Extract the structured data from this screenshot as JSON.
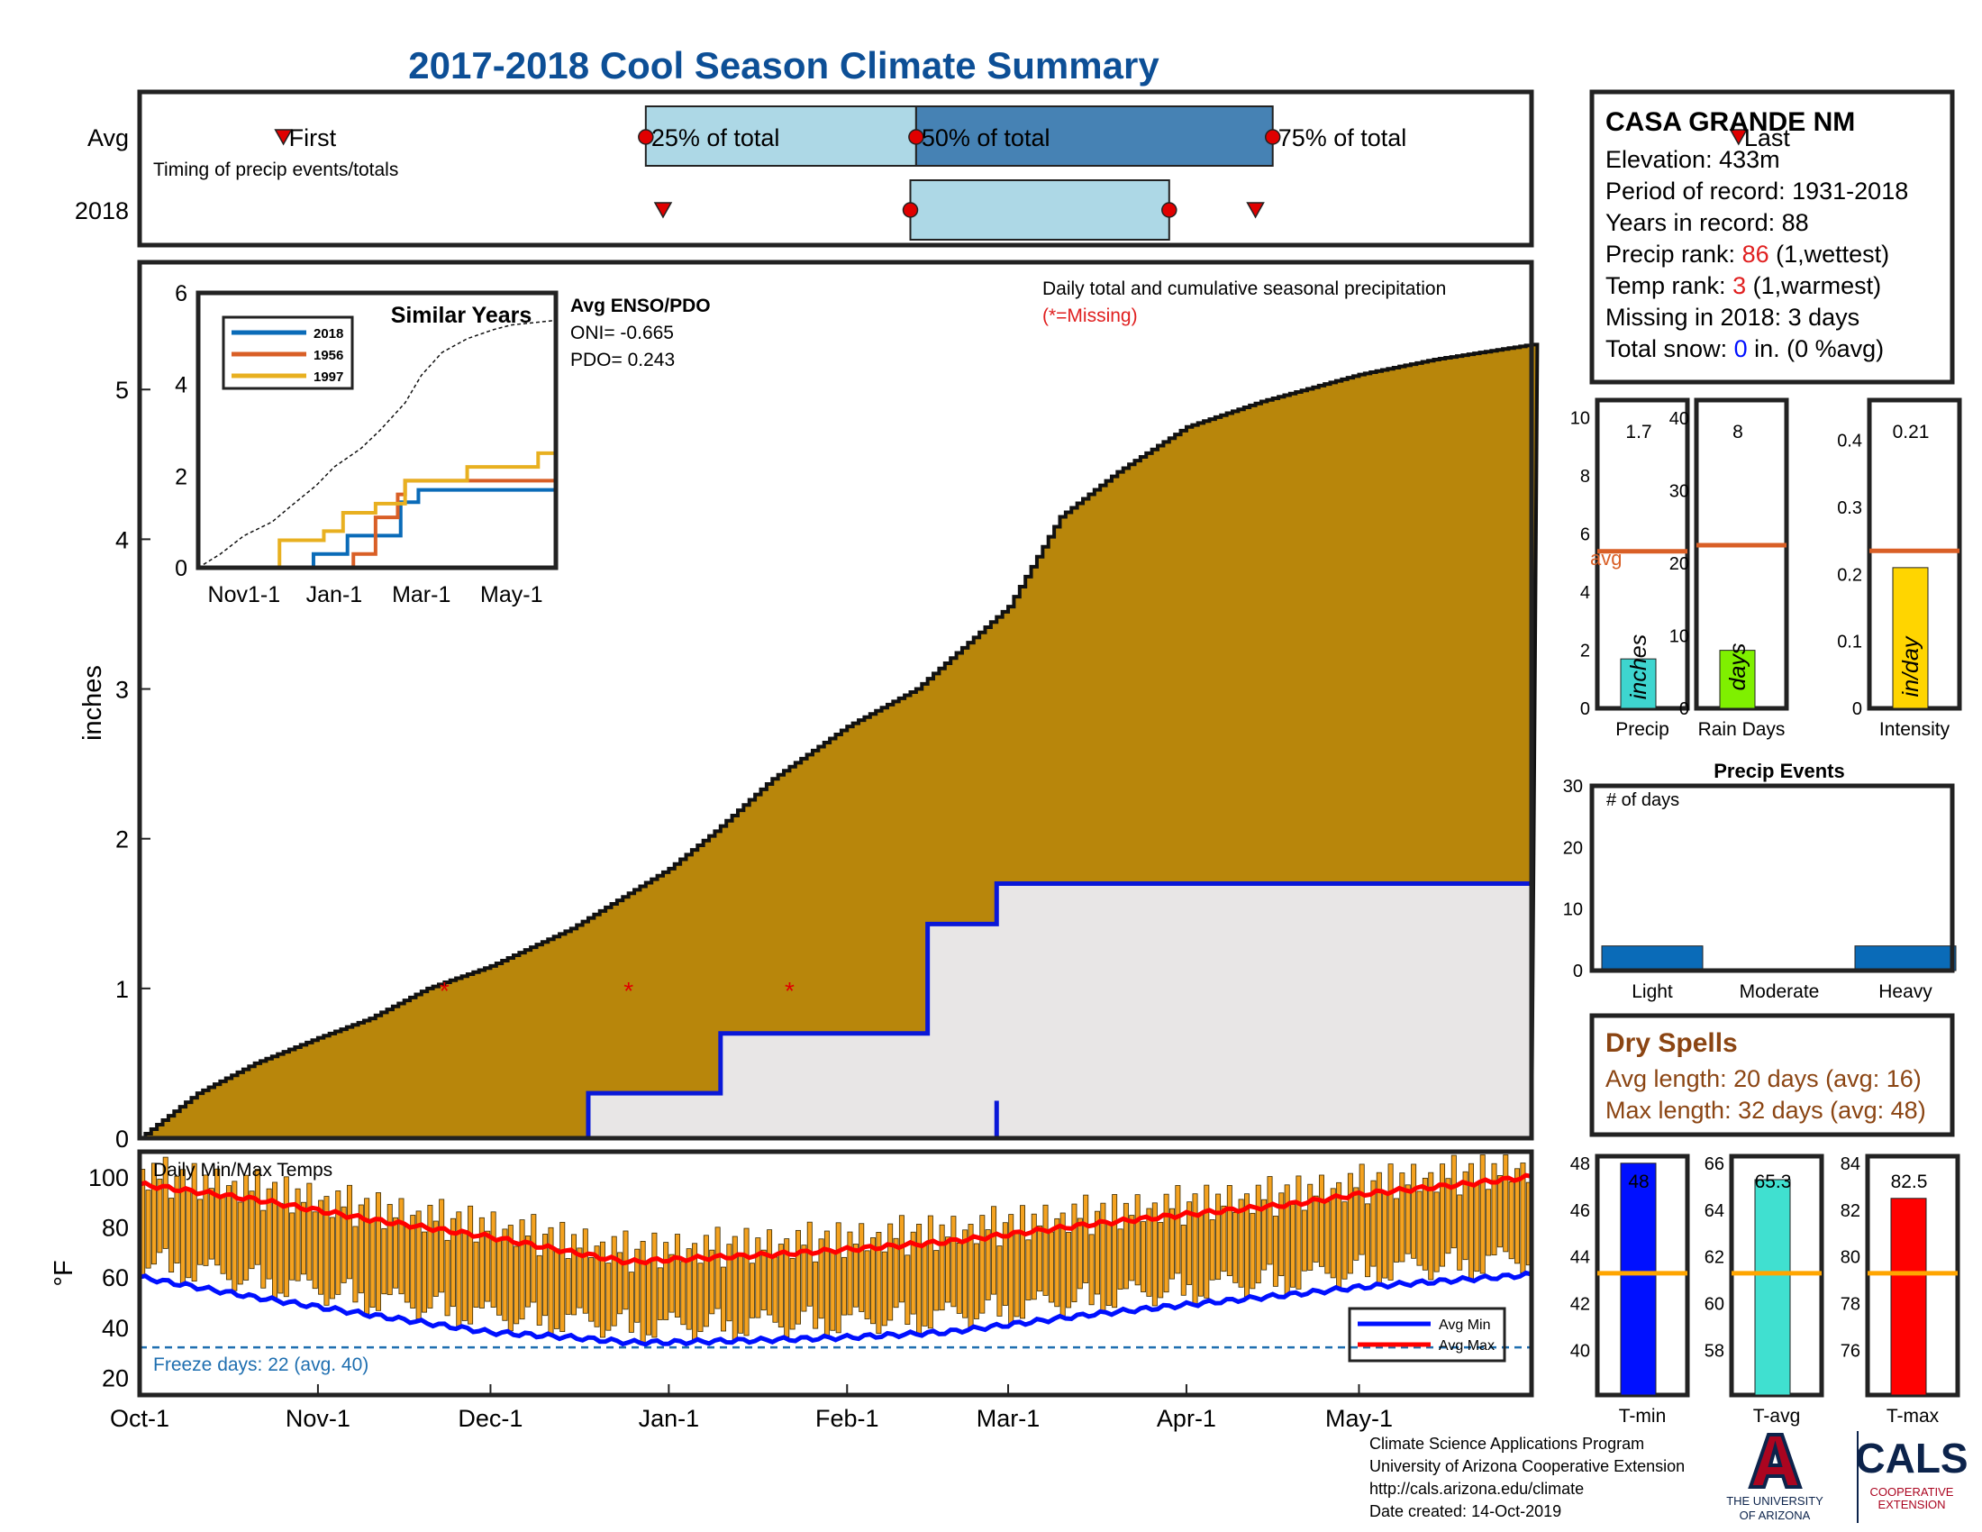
{
  "title": "2017-2018 Cool Season Climate Summary",
  "colors": {
    "title": "#0d4f96",
    "precip_fill": "#b8860b",
    "avg_line": "#d95f26",
    "precip_bar": "#3ed5cf",
    "raindays_bar": "#7ff000",
    "intensity_bar": "#ffd500",
    "tmin_bar": "#0010ff",
    "tavg_bar": "#40e0d0",
    "tmax_bar": "#ff0000",
    "event_bar": "#0a6bb8",
    "dry_text": "#8b4513",
    "temp_bar": "#f4a220",
    "freeze": "#1f6fb0"
  },
  "timing": {
    "row_labels": [
      "Avg",
      "2018"
    ],
    "subtitle": "Timing of precip events/totals",
    "avg_markers": {
      "first": "First",
      "p25": "25% of total",
      "p50": "50% of total",
      "p75": "75% of total",
      "last": "Last"
    },
    "avg_days": {
      "first": 25,
      "p25": 88,
      "p50": 135,
      "p75": 197,
      "last": 278
    },
    "y2018_days": {
      "first": 91,
      "p25": 134,
      "p75": 179,
      "last": 194
    }
  },
  "chart_data": [
    {
      "type": "area",
      "name": "main-precip",
      "title": "Daily total and cumulative seasonal precipitation",
      "subtitle": "(*=Missing)",
      "ylabel": "inches",
      "ylim": [
        0,
        5.85
      ],
      "yticks": [
        0,
        1,
        2,
        3,
        4,
        5
      ],
      "x_ticks": [
        "Oct-1",
        "Nov-1",
        "Dec-1",
        "Jan-1",
        "Feb-1",
        "Mar-1",
        "Apr-1",
        "May-1"
      ],
      "x_tick_days": [
        0,
        31,
        61,
        92,
        123,
        151,
        182,
        212
      ],
      "avg_cumulative": {
        "days": [
          0,
          10,
          20,
          31,
          40,
          50,
          61,
          75,
          92,
          100,
          110,
          123,
          135,
          151,
          160,
          170,
          182,
          195,
          212,
          225,
          242
        ],
        "values": [
          0.0,
          0.3,
          0.5,
          0.67,
          0.8,
          1.0,
          1.15,
          1.4,
          1.8,
          2.05,
          2.4,
          2.75,
          3.0,
          3.55,
          4.15,
          4.45,
          4.75,
          4.92,
          5.1,
          5.2,
          5.3
        ]
      },
      "cumulative_2018": {
        "days": [
          0,
          78,
          78,
          101,
          101,
          101,
          137,
          137,
          137,
          149,
          149,
          149,
          161,
          161,
          161,
          242
        ],
        "values": [
          0.0,
          0.0,
          0.3,
          0.3,
          0.35,
          0.7,
          0.7,
          0.73,
          1.43,
          1.43,
          1.45,
          1.7,
          1.7,
          1.7,
          1.7,
          1.7
        ]
      },
      "spike": {
        "day": 149,
        "value": 0.25
      },
      "missing_days": [
        53,
        85,
        113
      ]
    },
    {
      "type": "line",
      "name": "similar-years",
      "title": "Similar Years",
      "ylim": [
        0,
        6
      ],
      "yticks": [
        0,
        2,
        4,
        6
      ],
      "x_ticks": [
        "Nov1-1",
        "Jan-1",
        "Mar-1",
        "May-1"
      ],
      "x_tick_days": [
        31,
        92,
        151,
        212
      ],
      "series": [
        {
          "name": "2018",
          "color": "#0a6bb8",
          "days": [
            0,
            78,
            78,
            101,
            101,
            137,
            137,
            149,
            149,
            242
          ],
          "values": [
            0,
            0,
            0.3,
            0.3,
            0.7,
            0.7,
            1.43,
            1.43,
            1.7,
            1.7
          ]
        },
        {
          "name": "1956",
          "color": "#d95f26",
          "days": [
            0,
            105,
            105,
            120,
            120,
            135,
            135,
            140,
            140,
            242
          ],
          "values": [
            0,
            0,
            0.3,
            0.3,
            1.1,
            1.1,
            1.6,
            1.6,
            1.9,
            1.9
          ]
        },
        {
          "name": "1997",
          "color": "#e8b020",
          "days": [
            0,
            55,
            55,
            85,
            85,
            98,
            98,
            120,
            120,
            140,
            140,
            182,
            182,
            230,
            230,
            242
          ],
          "values": [
            0,
            0,
            0.6,
            0.6,
            0.8,
            0.8,
            1.2,
            1.2,
            1.4,
            1.4,
            1.9,
            1.9,
            2.2,
            2.2,
            2.5,
            2.5
          ]
        }
      ],
      "avg_days": [
        0,
        15,
        31,
        50,
        61,
        80,
        92,
        110,
        123,
        140,
        151,
        165,
        182,
        200,
        212,
        242
      ],
      "avg_values": [
        0.0,
        0.3,
        0.7,
        1.0,
        1.3,
        1.8,
        2.2,
        2.6,
        3.0,
        3.6,
        4.2,
        4.7,
        5.0,
        5.2,
        5.3,
        5.4
      ]
    },
    {
      "type": "bar",
      "name": "temps",
      "title": "Daily Min/Max Temps",
      "ylabel": "°F",
      "ylim": [
        13,
        110
      ],
      "yticks": [
        20,
        40,
        60,
        80,
        100
      ],
      "freeze_line": 32,
      "freeze_label": "Freeze days: 22 (avg. 40)",
      "legend": [
        "Avg Min",
        "Avg Max"
      ],
      "avg_max": {
        "days": [
          0,
          20,
          40,
          61,
          75,
          85,
          92,
          110,
          123,
          140,
          151,
          165,
          182,
          200,
          212,
          230,
          242
        ],
        "values": [
          97,
          91,
          83,
          76,
          70,
          66,
          67,
          69,
          71,
          74,
          77,
          81,
          85,
          89,
          93,
          97,
          100
        ]
      },
      "avg_min": {
        "days": [
          0,
          20,
          40,
          61,
          75,
          85,
          92,
          110,
          123,
          140,
          151,
          165,
          182,
          200,
          212,
          230,
          242
        ],
        "values": [
          60,
          52,
          45,
          38,
          36,
          34,
          34,
          35,
          36,
          38,
          41,
          45,
          49,
          53,
          56,
          59,
          61
        ]
      },
      "daily_hi_offset": [
        6,
        -2,
        9,
        3,
        12,
        -4,
        5,
        8,
        0,
        11,
        -3,
        7,
        2,
        10,
        -1,
        4
      ],
      "daily_lo_offset": [
        -5,
        3,
        2,
        -2,
        6,
        -6,
        0,
        4,
        -3,
        5,
        1,
        -4,
        7,
        -1,
        3,
        -2
      ]
    },
    {
      "type": "bar",
      "name": "totals",
      "categories": [
        "Precip",
        "Rain Days",
        "Intensity"
      ],
      "values": [
        1.7,
        8,
        0.21
      ],
      "value_labels": [
        "1.7",
        "8",
        "0.21"
      ],
      "avg": [
        5.4,
        22.5,
        0.235
      ],
      "ylims": [
        [
          0,
          10.6
        ],
        [
          0,
          42.5
        ],
        [
          0,
          0.46
        ]
      ],
      "yticks": [
        [
          0,
          2,
          4,
          6,
          8,
          10
        ],
        [
          0,
          10,
          20,
          30,
          40
        ],
        [
          0,
          0.1,
          0.2,
          0.3,
          0.4
        ]
      ],
      "units": [
        "inches",
        "days",
        "in/day"
      ],
      "avg_label": "avg"
    },
    {
      "type": "bar",
      "name": "precip-events",
      "title": "Precip Events",
      "annotation": "# of days",
      "categories": [
        "Light",
        "Moderate",
        "Heavy"
      ],
      "values": [
        4,
        0,
        4
      ],
      "ylim": [
        0,
        30
      ],
      "yticks": [
        0,
        10,
        20,
        30
      ]
    },
    {
      "type": "bar",
      "name": "temperature-totals",
      "categories": [
        "T-min",
        "T-avg",
        "T-max"
      ],
      "values": [
        48,
        65.3,
        82.5
      ],
      "value_labels": [
        "48",
        "65.3",
        "82.5"
      ],
      "avg": [
        43.3,
        61.3,
        79.3
      ],
      "ylims": [
        [
          38.1,
          48.3
        ],
        [
          56.1,
          66.3
        ],
        [
          74.1,
          84.3
        ]
      ],
      "yticks": [
        [
          40,
          42,
          44,
          46,
          48
        ],
        [
          58,
          60,
          62,
          64,
          66
        ],
        [
          76,
          78,
          80,
          82,
          84
        ]
      ]
    }
  ],
  "station": {
    "name": "CASA GRANDE NM",
    "elevation": "Elevation: 433m",
    "period": "Period of record: 1931-2018",
    "years": "Years in record: 88",
    "precip_rank_label": "Precip rank: ",
    "precip_rank_value": "86",
    "precip_rank_note": " (1,wettest)",
    "temp_rank_label": "Temp rank: ",
    "temp_rank_value": "3",
    "temp_rank_note": " (1,warmest)",
    "missing": "Missing in 2018: 3 days",
    "snow_label": "Total snow: ",
    "snow_value": "0",
    "snow_note": " in. (0 %avg)"
  },
  "enso": {
    "title": "Avg ENSO/PDO",
    "oni": "ONI= -0.665",
    "pdo": "PDO= 0.243"
  },
  "dry_spells": {
    "title": "Dry Spells",
    "avg": "Avg length: 20 days (avg: 16)",
    "max": "Max length: 32 days (avg: 48)"
  },
  "footer": {
    "line1": "Climate Science Applications Program",
    "line2": "University of Arizona Cooperative Extension",
    "line3": "http://cals.arizona.edu/climate",
    "line4": " Date created: 14-Oct-2019"
  },
  "logos": {
    "ua_line1": "THE UNIVERSITY",
    "ua_line2": "OF ARIZONA",
    "cals": "CALS",
    "cals_sub1": "COOPERATIVE",
    "cals_sub2": "EXTENSION"
  }
}
